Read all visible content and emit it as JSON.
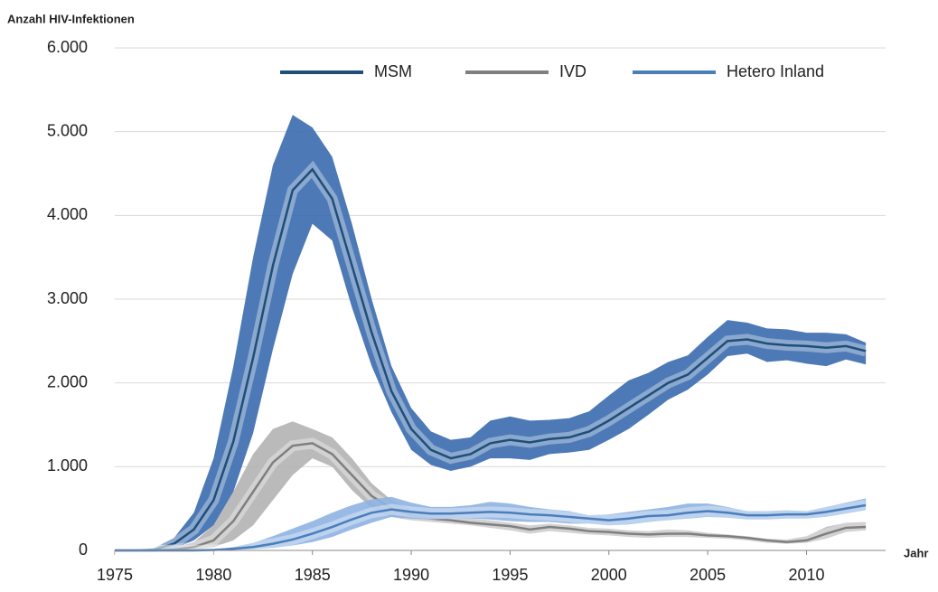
{
  "chart_data": {
    "type": "line",
    "y_label": "Anzahl HIV-Infektionen",
    "x_label": "Jahr",
    "x": [
      1975,
      1976,
      1977,
      1978,
      1979,
      1980,
      1981,
      1982,
      1983,
      1984,
      1985,
      1986,
      1987,
      1988,
      1989,
      1990,
      1991,
      1992,
      1993,
      1994,
      1995,
      1996,
      1997,
      1998,
      1999,
      2000,
      2001,
      2002,
      2003,
      2004,
      2005,
      2006,
      2007,
      2008,
      2009,
      2010,
      2011,
      2012,
      2013
    ],
    "xlim": [
      1975,
      2014
    ],
    "xticks": [
      1975,
      1980,
      1985,
      1990,
      1995,
      2000,
      2005,
      2010
    ],
    "ylim": [
      0,
      6000
    ],
    "yticks": [
      0,
      {
        "value": 1000,
        "label": "1.000"
      },
      {
        "value": 2000,
        "label": "2.000"
      },
      {
        "value": 3000,
        "label": "3.000"
      },
      {
        "value": 4000,
        "label": "4.000"
      },
      {
        "value": 5000,
        "label": "5.000"
      },
      {
        "value": 6000,
        "label": "6.000"
      }
    ],
    "grid": true,
    "legend": "top",
    "series": [
      {
        "name": "MSM",
        "color": "#1f4e79",
        "band_color": "#3a6bae",
        "values": [
          0,
          0,
          10,
          80,
          250,
          600,
          1300,
          2300,
          3400,
          4300,
          4550,
          4200,
          3400,
          2600,
          1900,
          1450,
          1200,
          1100,
          1150,
          1280,
          1320,
          1290,
          1330,
          1350,
          1420,
          1550,
          1700,
          1850,
          2000,
          2100,
          2300,
          2500,
          2520,
          2470,
          2450,
          2440,
          2420,
          2440,
          2380
        ],
        "upper": [
          0,
          0,
          30,
          150,
          450,
          1100,
          2200,
          3500,
          4600,
          5200,
          5050,
          4700,
          3900,
          3000,
          2200,
          1700,
          1420,
          1320,
          1350,
          1550,
          1600,
          1550,
          1560,
          1580,
          1660,
          1850,
          2030,
          2120,
          2250,
          2330,
          2550,
          2750,
          2720,
          2650,
          2640,
          2600,
          2600,
          2580,
          2480
        ],
        "lower": [
          0,
          0,
          0,
          20,
          120,
          300,
          700,
          1400,
          2400,
          3300,
          3900,
          3700,
          2900,
          2200,
          1650,
          1200,
          1020,
          950,
          1000,
          1100,
          1100,
          1080,
          1150,
          1170,
          1200,
          1320,
          1450,
          1620,
          1800,
          1920,
          2100,
          2320,
          2350,
          2250,
          2270,
          2230,
          2200,
          2280,
          2220
        ]
      },
      {
        "name": "IVD",
        "color": "#7f7f7f",
        "band_color": "#b3b3b3",
        "values": [
          0,
          0,
          0,
          10,
          40,
          120,
          350,
          700,
          1050,
          1250,
          1280,
          1150,
          900,
          650,
          500,
          420,
          380,
          360,
          330,
          310,
          290,
          250,
          280,
          260,
          230,
          220,
          200,
          190,
          200,
          200,
          180,
          170,
          150,
          120,
          100,
          120,
          200,
          270,
          280
        ],
        "upper": [
          0,
          0,
          0,
          30,
          100,
          300,
          700,
          1150,
          1450,
          1540,
          1450,
          1350,
          1100,
          800,
          600,
          480,
          430,
          400,
          380,
          360,
          330,
          300,
          320,
          300,
          270,
          260,
          240,
          230,
          250,
          240,
          210,
          190,
          170,
          140,
          130,
          170,
          280,
          330,
          340
        ],
        "lower": [
          0,
          0,
          0,
          0,
          10,
          40,
          120,
          300,
          600,
          900,
          1100,
          1000,
          720,
          500,
          400,
          360,
          340,
          320,
          300,
          270,
          240,
          200,
          230,
          210,
          190,
          180,
          160,
          150,
          160,
          160,
          150,
          140,
          120,
          90,
          80,
          90,
          140,
          220,
          240
        ]
      },
      {
        "name": "Hetero Inland",
        "color": "#4a7ebb",
        "band_color": "#8db3e2",
        "values": [
          0,
          0,
          0,
          0,
          0,
          5,
          20,
          40,
          80,
          130,
          200,
          280,
          370,
          450,
          490,
          460,
          440,
          440,
          450,
          460,
          450,
          430,
          420,
          400,
          380,
          360,
          380,
          410,
          420,
          450,
          470,
          450,
          420,
          420,
          430,
          430,
          460,
          500,
          540
        ],
        "upper": [
          0,
          0,
          0,
          0,
          0,
          10,
          40,
          90,
          170,
          260,
          350,
          450,
          540,
          610,
          640,
          570,
          520,
          520,
          540,
          580,
          560,
          520,
          490,
          470,
          420,
          430,
          460,
          490,
          520,
          560,
          560,
          520,
          470,
          470,
          480,
          470,
          520,
          570,
          620
        ],
        "lower": [
          0,
          0,
          0,
          0,
          0,
          0,
          5,
          15,
          30,
          60,
          100,
          160,
          250,
          330,
          400,
          380,
          370,
          380,
          380,
          370,
          350,
          340,
          340,
          320,
          320,
          300,
          310,
          340,
          360,
          380,
          400,
          390,
          370,
          370,
          380,
          380,
          400,
          440,
          480
        ]
      }
    ]
  }
}
